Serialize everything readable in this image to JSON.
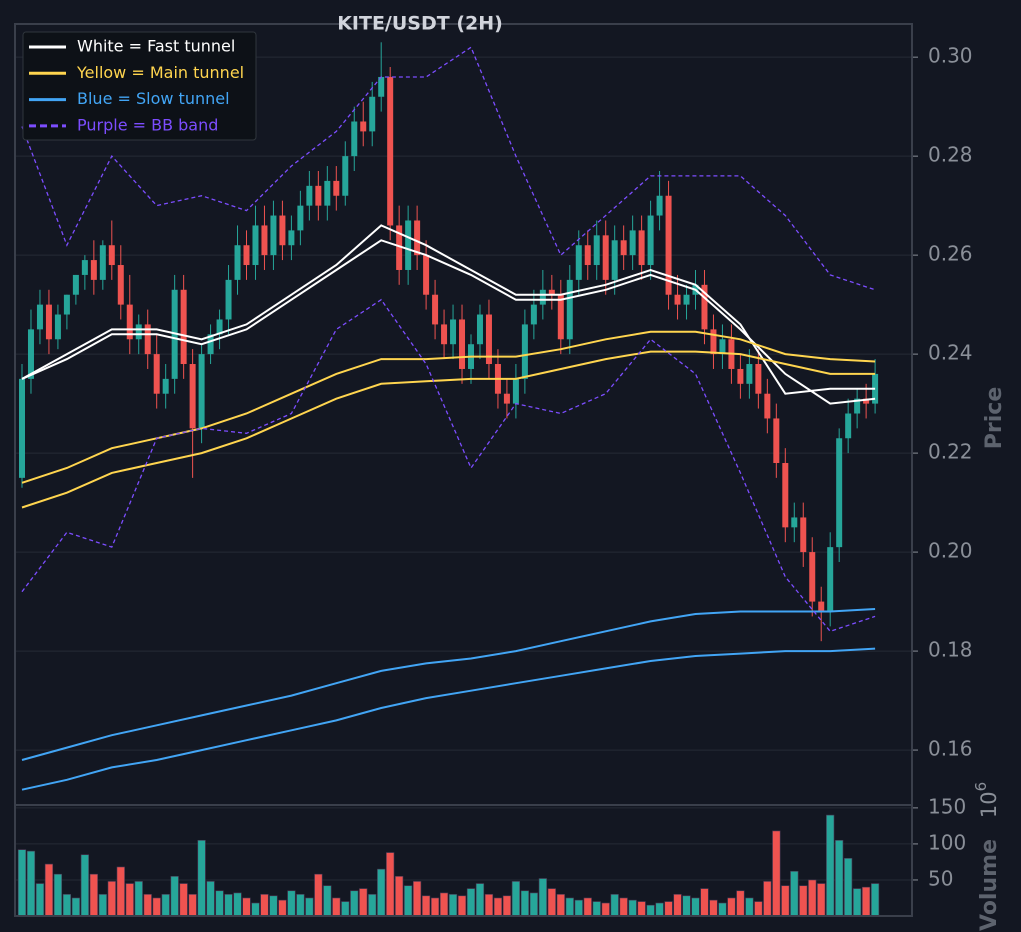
{
  "chart_data": {
    "type": "candlestick",
    "title": "KITE/USDT (2H)",
    "ylabel": "Price",
    "volume_label": "Volume",
    "volume_offset": {
      "base": "10",
      "exponent": "6"
    },
    "up_color": "#26a69a",
    "down_color": "#ef5350",
    "grid": true,
    "ylim": [
      0.1489,
      0.3067
    ],
    "yticks": [
      0.16,
      0.18,
      {
        "value": 0.2,
        "label": "0.20"
      },
      0.22,
      0.24,
      0.26,
      0.28,
      {
        "value": 0.3,
        "label": "0.30"
      }
    ],
    "volume_ylim": [
      0,
      154
    ],
    "volume_yticks": [
      50,
      100,
      150
    ],
    "open": [
      0.215,
      0.235,
      0.245,
      0.25,
      0.243,
      0.248,
      0.252,
      0.256,
      0.259,
      0.255,
      0.262,
      0.258,
      0.25,
      0.243,
      0.246,
      0.24,
      0.232,
      0.235,
      0.253,
      0.238,
      0.225,
      0.24,
      0.244,
      0.247,
      0.255,
      0.262,
      0.258,
      0.266,
      0.26,
      0.268,
      0.262,
      0.265,
      0.27,
      0.274,
      0.27,
      0.275,
      0.272,
      0.28,
      0.287,
      0.285,
      0.292,
      0.296,
      0.266,
      0.257,
      0.267,
      0.26,
      0.252,
      0.246,
      0.242,
      0.247,
      0.237,
      0.242,
      0.248,
      0.238,
      0.232,
      0.23,
      0.235,
      0.246,
      0.25,
      0.253,
      0.252,
      0.243,
      0.255,
      0.262,
      0.258,
      0.264,
      0.255,
      0.263,
      0.26,
      0.265,
      0.258,
      0.268,
      0.272,
      0.252,
      0.25,
      0.252,
      0.254,
      0.245,
      0.24,
      0.243,
      0.237,
      0.234,
      0.238,
      0.232,
      0.227,
      0.218,
      0.205,
      0.207,
      0.2,
      0.19,
      0.188,
      0.201,
      0.223,
      0.228,
      0.231,
      0.23
    ],
    "high": [
      0.238,
      0.249,
      0.253,
      0.253,
      0.25,
      0.252,
      0.256,
      0.26,
      0.263,
      0.263,
      0.267,
      0.262,
      0.256,
      0.248,
      0.249,
      0.244,
      0.238,
      0.256,
      0.256,
      0.241,
      0.242,
      0.246,
      0.249,
      0.258,
      0.266,
      0.265,
      0.27,
      0.27,
      0.271,
      0.271,
      0.268,
      0.273,
      0.277,
      0.277,
      0.278,
      0.278,
      0.283,
      0.29,
      0.291,
      0.295,
      0.303,
      0.298,
      0.27,
      0.27,
      0.27,
      0.263,
      0.255,
      0.249,
      0.25,
      0.25,
      0.244,
      0.25,
      0.251,
      0.241,
      0.235,
      0.238,
      0.249,
      0.253,
      0.257,
      0.256,
      0.255,
      0.258,
      0.265,
      0.265,
      0.267,
      0.267,
      0.266,
      0.266,
      0.268,
      0.268,
      0.271,
      0.277,
      0.275,
      0.256,
      0.254,
      0.257,
      0.257,
      0.248,
      0.246,
      0.246,
      0.24,
      0.241,
      0.241,
      0.235,
      0.23,
      0.221,
      0.21,
      0.21,
      0.203,
      0.193,
      0.204,
      0.225,
      0.231,
      0.233,
      0.234,
      0.239
    ],
    "low": [
      0.213,
      0.232,
      0.242,
      0.24,
      0.241,
      0.245,
      0.25,
      0.253,
      0.252,
      0.253,
      0.255,
      0.247,
      0.24,
      0.24,
      0.237,
      0.229,
      0.229,
      0.232,
      0.235,
      0.215,
      0.222,
      0.238,
      0.241,
      0.244,
      0.252,
      0.255,
      0.255,
      0.257,
      0.257,
      0.259,
      0.259,
      0.262,
      0.267,
      0.267,
      0.267,
      0.269,
      0.27,
      0.277,
      0.282,
      0.282,
      0.289,
      0.263,
      0.254,
      0.254,
      0.257,
      0.249,
      0.243,
      0.239,
      0.239,
      0.234,
      0.234,
      0.239,
      0.235,
      0.229,
      0.227,
      0.227,
      0.232,
      0.243,
      0.247,
      0.249,
      0.24,
      0.24,
      0.252,
      0.255,
      0.255,
      0.252,
      0.252,
      0.257,
      0.257,
      0.255,
      0.255,
      0.265,
      0.249,
      0.247,
      0.247,
      0.249,
      0.242,
      0.237,
      0.237,
      0.234,
      0.231,
      0.231,
      0.229,
      0.224,
      0.215,
      0.202,
      0.202,
      0.197,
      0.187,
      0.182,
      0.185,
      0.198,
      0.22,
      0.225,
      0.227,
      0.228
    ],
    "close": [
      0.235,
      0.245,
      0.25,
      0.243,
      0.248,
      0.252,
      0.256,
      0.259,
      0.255,
      0.262,
      0.258,
      0.25,
      0.243,
      0.246,
      0.24,
      0.232,
      0.235,
      0.253,
      0.238,
      0.225,
      0.24,
      0.244,
      0.247,
      0.255,
      0.262,
      0.258,
      0.266,
      0.26,
      0.268,
      0.262,
      0.265,
      0.27,
      0.274,
      0.27,
      0.275,
      0.272,
      0.28,
      0.287,
      0.285,
      0.292,
      0.296,
      0.266,
      0.257,
      0.267,
      0.26,
      0.252,
      0.246,
      0.242,
      0.247,
      0.237,
      0.242,
      0.248,
      0.238,
      0.232,
      0.23,
      0.235,
      0.246,
      0.25,
      0.253,
      0.252,
      0.243,
      0.255,
      0.262,
      0.258,
      0.264,
      0.255,
      0.263,
      0.26,
      0.265,
      0.258,
      0.268,
      0.272,
      0.252,
      0.25,
      0.252,
      0.254,
      0.245,
      0.24,
      0.243,
      0.237,
      0.234,
      0.238,
      0.232,
      0.227,
      0.218,
      0.205,
      0.207,
      0.2,
      0.19,
      0.188,
      0.201,
      0.223,
      0.228,
      0.231,
      0.23,
      0.236
    ],
    "volume": [
      92,
      90,
      45,
      72,
      58,
      30,
      25,
      85,
      58,
      30,
      48,
      68,
      45,
      48,
      30,
      25,
      30,
      55,
      45,
      30,
      105,
      48,
      35,
      30,
      32,
      25,
      18,
      30,
      28,
      22,
      35,
      30,
      25,
      58,
      42,
      25,
      20,
      35,
      38,
      30,
      65,
      88,
      55,
      42,
      48,
      28,
      25,
      32,
      30,
      28,
      38,
      45,
      30,
      25,
      28,
      48,
      35,
      32,
      52,
      38,
      30,
      25,
      22,
      25,
      20,
      18,
      30,
      25,
      22,
      20,
      15,
      18,
      20,
      30,
      28,
      25,
      38,
      22,
      18,
      25,
      35,
      25,
      20,
      48,
      118,
      42,
      62,
      42,
      50,
      45,
      140,
      105,
      80,
      38,
      40,
      45
    ],
    "lines_x": [
      0,
      5,
      10,
      15,
      20,
      25,
      30,
      35,
      40,
      45,
      50,
      55,
      60,
      65,
      70,
      75,
      80,
      85,
      90,
      95
    ],
    "series": [
      {
        "name": "White = Fast tunnel",
        "color": "#ffffff",
        "style": "solid",
        "values": [
          0.235,
          0.24,
          0.245,
          0.245,
          0.243,
          0.246,
          0.252,
          0.258,
          0.266,
          0.262,
          0.257,
          0.252,
          0.252,
          0.254,
          0.257,
          0.254,
          0.246,
          0.232,
          0.233,
          0.233
        ]
      },
      {
        "name": null,
        "color": "#ffffff",
        "style": "solid",
        "values": [
          0.235,
          0.239,
          0.244,
          0.244,
          0.242,
          0.245,
          0.251,
          0.257,
          0.263,
          0.26,
          0.256,
          0.251,
          0.251,
          0.253,
          0.256,
          0.253,
          0.245,
          0.236,
          0.23,
          0.231
        ]
      },
      {
        "name": "Yellow = Main tunnel",
        "color": "#ffd54f",
        "style": "solid",
        "values": [
          0.214,
          0.217,
          0.221,
          0.223,
          0.225,
          0.228,
          0.232,
          0.236,
          0.239,
          0.239,
          0.2395,
          0.2395,
          0.241,
          0.243,
          0.2445,
          0.2445,
          0.243,
          0.24,
          0.239,
          0.2385
        ]
      },
      {
        "name": null,
        "color": "#ffd54f",
        "style": "solid",
        "values": [
          0.209,
          0.212,
          0.216,
          0.218,
          0.22,
          0.223,
          0.227,
          0.231,
          0.234,
          0.2345,
          0.235,
          0.235,
          0.237,
          0.239,
          0.2405,
          0.2405,
          0.24,
          0.238,
          0.236,
          0.236
        ]
      },
      {
        "name": "Blue = Slow tunnel",
        "color": "#42a5f5",
        "style": "solid",
        "values": [
          0.158,
          0.1605,
          0.163,
          0.165,
          0.167,
          0.169,
          0.171,
          0.1735,
          0.176,
          0.1775,
          0.1785,
          0.18,
          0.182,
          0.184,
          0.186,
          0.1875,
          0.188,
          0.188,
          0.188,
          0.1885
        ]
      },
      {
        "name": null,
        "color": "#42a5f5",
        "style": "solid",
        "values": [
          0.152,
          0.154,
          0.1565,
          0.158,
          0.16,
          0.162,
          0.164,
          0.166,
          0.1685,
          0.1705,
          0.172,
          0.1735,
          0.175,
          0.1765,
          0.178,
          0.179,
          0.1795,
          0.18,
          0.18,
          0.1805
        ]
      },
      {
        "name": "Purple = BB band",
        "color": "#7c4dff",
        "style": "dashed",
        "values": [
          0.286,
          0.262,
          0.28,
          0.27,
          0.272,
          0.269,
          0.278,
          0.285,
          0.296,
          0.296,
          0.302,
          0.28,
          0.26,
          0.268,
          0.276,
          0.276,
          0.276,
          0.268,
          0.256,
          0.253
        ]
      },
      {
        "name": null,
        "color": "#7c4dff",
        "style": "dashed",
        "values": [
          0.192,
          0.204,
          0.201,
          0.223,
          0.225,
          0.224,
          0.228,
          0.245,
          0.251,
          0.238,
          0.217,
          0.23,
          0.228,
          0.232,
          0.243,
          0.236,
          0.216,
          0.195,
          0.184,
          0.187
        ]
      }
    ]
  }
}
